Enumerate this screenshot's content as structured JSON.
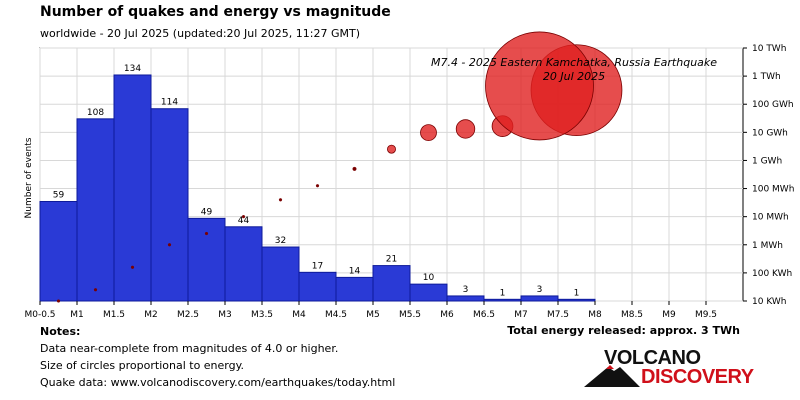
{
  "title": "Number of quakes and energy vs magnitude",
  "subtitle": "worldwide - 20 Jul 2025 (updated:20 Jul 2025, 11:27 GMT)",
  "notes": {
    "heading": "Notes:",
    "lines": [
      "Data near-complete from magnitudes of 4.0 or higher.",
      "Size of circles proportional to energy.",
      "Quake data: www.volcanodiscovery.com/earthquakes/today.html"
    ]
  },
  "total_energy": "Total energy released: approx. 3 TWh",
  "logo": {
    "line1": "VOLCANO",
    "line2": "DISCOVERY"
  },
  "colors": {
    "bars": "#2a3ad6",
    "bar_edge": "#0d1a9a",
    "circles": "#e02020",
    "circle_edge": "#7a0000",
    "dots": "#7a0000"
  },
  "chart_data": [
    {
      "type": "bar",
      "title": "Number of quakes and energy vs magnitude",
      "ylabel": "Number of events",
      "x_tick_labels": [
        "M0-0.5",
        "M1",
        "M1.5",
        "M2",
        "M2.5",
        "M3",
        "M3.5",
        "M4",
        "M4.5",
        "M5",
        "M5.5",
        "M6",
        "M6.5",
        "M7",
        "M7.5",
        "M8",
        "M8.5",
        "M9",
        "M9.5"
      ],
      "bins": [
        {
          "from": 0.5,
          "to": 1.0,
          "count": 59
        },
        {
          "from": 1.0,
          "to": 1.5,
          "count": 108
        },
        {
          "from": 1.5,
          "to": 2.0,
          "count": 134
        },
        {
          "from": 2.0,
          "to": 2.5,
          "count": 114
        },
        {
          "from": 2.5,
          "to": 3.0,
          "count": 49
        },
        {
          "from": 3.0,
          "to": 3.5,
          "count": 44
        },
        {
          "from": 3.5,
          "to": 4.0,
          "count": 32
        },
        {
          "from": 4.0,
          "to": 4.5,
          "count": 17
        },
        {
          "from": 4.5,
          "to": 5.0,
          "count": 14
        },
        {
          "from": 5.0,
          "to": 5.5,
          "count": 21
        },
        {
          "from": 5.5,
          "to": 6.0,
          "count": 10
        },
        {
          "from": 6.0,
          "to": 6.5,
          "count": 3
        },
        {
          "from": 6.5,
          "to": 7.0,
          "count": 1
        },
        {
          "from": 7.0,
          "to": 7.5,
          "count": 3
        },
        {
          "from": 7.5,
          "to": 8.0,
          "count": 1
        }
      ],
      "ylim": [
        0,
        150
      ],
      "xlim": [
        0.5,
        10.0
      ]
    },
    {
      "type": "scatter",
      "title": "Energy per magnitude bin (circle size proportional to energy)",
      "right_axis_labels": [
        "10 KWh",
        "100 KWh",
        "1 MWh",
        "10 MWh",
        "100 MWh",
        "1 GWh",
        "10 GWh",
        "100 GWh",
        "1 TWh",
        "10 TWh"
      ],
      "right_axis_log_range_wh": [
        4,
        13
      ],
      "points": [
        {
          "magnitude": 0.75,
          "energy_log10_wh": 4.0
        },
        {
          "magnitude": 1.25,
          "energy_log10_wh": 4.4
        },
        {
          "magnitude": 1.75,
          "energy_log10_wh": 5.2
        },
        {
          "magnitude": 2.25,
          "energy_log10_wh": 6.0
        },
        {
          "magnitude": 2.75,
          "energy_log10_wh": 6.4
        },
        {
          "magnitude": 3.25,
          "energy_log10_wh": 7.0
        },
        {
          "magnitude": 3.75,
          "energy_log10_wh": 7.6
        },
        {
          "magnitude": 4.25,
          "energy_log10_wh": 8.1
        },
        {
          "magnitude": 4.75,
          "energy_log10_wh": 8.7
        },
        {
          "magnitude": 5.25,
          "energy_log10_wh": 9.4
        },
        {
          "magnitude": 5.75,
          "energy_log10_wh": 9.99
        },
        {
          "magnitude": 6.25,
          "energy_log10_wh": 10.12
        },
        {
          "magnitude": 6.75,
          "energy_log10_wh": 10.22
        },
        {
          "magnitude": 7.25,
          "energy_log10_wh": 11.65
        },
        {
          "magnitude": 7.75,
          "energy_log10_wh": 11.5
        }
      ]
    }
  ],
  "annotation": {
    "line1": "M7.4 - 2025 Eastern Kamchatka, Russia Earthquake",
    "line2": "20 Jul 2025"
  }
}
